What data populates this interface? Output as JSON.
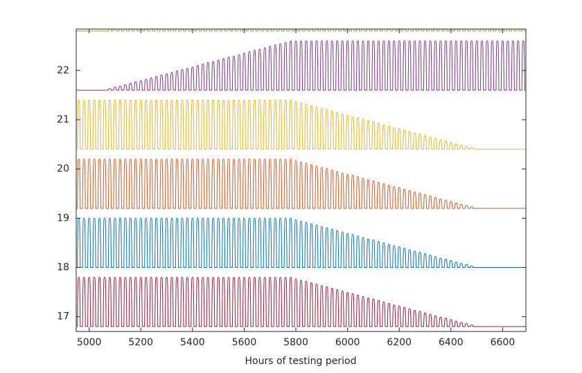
{
  "chart_data": {
    "type": "pulse",
    "xlabel": "Hours of testing period",
    "x": [
      4960,
      4980,
      5000,
      5020,
      5040,
      5060,
      5080,
      5100,
      5120,
      5140,
      5160,
      5180,
      5200,
      5220,
      5240,
      5260,
      5280,
      5300,
      5320,
      5340,
      5360,
      5380,
      5400,
      5420,
      5440,
      5460,
      5480,
      5500,
      5520,
      5540,
      5560,
      5580,
      5600,
      5620,
      5640,
      5660,
      5680,
      5700,
      5720,
      5740,
      5760,
      5780,
      5800,
      5820,
      5840,
      5860,
      5880,
      5900,
      5920,
      5940,
      5960,
      5980,
      6000,
      6020,
      6040,
      6060,
      6080,
      6100,
      6120,
      6140,
      6160,
      6180,
      6200,
      6220,
      6240,
      6260,
      6280,
      6300,
      6320,
      6340,
      6360,
      6380,
      6400,
      6420,
      6440,
      6460,
      6480,
      6500,
      6520,
      6540,
      6560,
      6580,
      6600,
      6620,
      6640,
      6660,
      6680
    ],
    "xlim": [
      4950,
      6690
    ],
    "xticks": [
      5000,
      5200,
      5400,
      5600,
      5800,
      6000,
      6200,
      6400,
      6600
    ],
    "ylim": [
      16.7,
      22.84
    ],
    "yticks": [
      17,
      18,
      19,
      20,
      21,
      22
    ],
    "series": [
      {
        "color": "#a2142f",
        "base": 16.8,
        "values": [
          17.8,
          17.8,
          17.8,
          17.8,
          17.8,
          17.8,
          17.8,
          17.8,
          17.8,
          17.8,
          17.8,
          17.8,
          17.8,
          17.8,
          17.8,
          17.8,
          17.8,
          17.8,
          17.8,
          17.8,
          17.8,
          17.8,
          17.8,
          17.8,
          17.8,
          17.8,
          17.8,
          17.8,
          17.8,
          17.8,
          17.8,
          17.8,
          17.8,
          17.8,
          17.8,
          17.8,
          17.8,
          17.8,
          17.8,
          17.8,
          17.8,
          17.8,
          17.77,
          17.74,
          17.72,
          17.69,
          17.66,
          17.63,
          17.61,
          17.58,
          17.55,
          17.52,
          17.49,
          17.47,
          17.44,
          17.41,
          17.38,
          17.36,
          17.33,
          17.3,
          17.27,
          17.24,
          17.22,
          17.19,
          17.16,
          17.13,
          17.11,
          17.08,
          17.05,
          17.02,
          16.99,
          16.97,
          16.94,
          16.91,
          16.88,
          16.86,
          16.83,
          16.8,
          16.8,
          16.8,
          16.8,
          16.8,
          16.8,
          16.8,
          16.8,
          16.8,
          16.8
        ]
      },
      {
        "color": "#0072bd",
        "base": 18,
        "values": [
          19,
          19,
          19,
          19,
          19,
          19,
          19,
          19,
          19,
          19,
          19,
          19,
          19,
          19,
          19,
          19,
          19,
          19,
          19,
          19,
          19,
          19,
          19,
          19,
          19,
          19,
          19,
          19,
          19,
          19,
          19,
          19,
          19,
          19,
          19,
          19,
          19,
          19,
          19,
          19,
          19,
          19,
          18.97,
          18.94,
          18.92,
          18.89,
          18.86,
          18.83,
          18.81,
          18.78,
          18.75,
          18.72,
          18.69,
          18.67,
          18.64,
          18.61,
          18.58,
          18.56,
          18.53,
          18.5,
          18.47,
          18.44,
          18.42,
          18.39,
          18.36,
          18.33,
          18.31,
          18.28,
          18.25,
          18.22,
          18.19,
          18.17,
          18.14,
          18.11,
          18.08,
          18.06,
          18.03,
          18,
          18,
          18,
          18,
          18,
          18,
          18,
          18,
          18,
          18
        ]
      },
      {
        "color": "#d95319",
        "base": 19.2,
        "values": [
          20.2,
          20.2,
          20.2,
          20.2,
          20.2,
          20.2,
          20.2,
          20.2,
          20.2,
          20.2,
          20.2,
          20.2,
          20.2,
          20.2,
          20.2,
          20.2,
          20.2,
          20.2,
          20.2,
          20.2,
          20.2,
          20.2,
          20.2,
          20.2,
          20.2,
          20.2,
          20.2,
          20.2,
          20.2,
          20.2,
          20.2,
          20.2,
          20.2,
          20.2,
          20.2,
          20.2,
          20.2,
          20.2,
          20.2,
          20.2,
          20.2,
          20.2,
          20.17,
          20.14,
          20.12,
          20.09,
          20.06,
          20.03,
          20.01,
          19.98,
          19.95,
          19.92,
          19.89,
          19.87,
          19.84,
          19.81,
          19.78,
          19.76,
          19.73,
          19.7,
          19.67,
          19.64,
          19.62,
          19.59,
          19.56,
          19.53,
          19.51,
          19.48,
          19.45,
          19.42,
          19.39,
          19.37,
          19.34,
          19.31,
          19.28,
          19.26,
          19.23,
          19.2,
          19.2,
          19.2,
          19.2,
          19.2,
          19.2,
          19.2,
          19.2,
          19.2,
          19.2
        ]
      },
      {
        "color": "#edb120",
        "base": 20.4,
        "values": [
          21.4,
          21.4,
          21.4,
          21.4,
          21.4,
          21.4,
          21.4,
          21.4,
          21.4,
          21.4,
          21.4,
          21.4,
          21.4,
          21.4,
          21.4,
          21.4,
          21.4,
          21.4,
          21.4,
          21.4,
          21.4,
          21.4,
          21.4,
          21.4,
          21.4,
          21.4,
          21.4,
          21.4,
          21.4,
          21.4,
          21.4,
          21.4,
          21.4,
          21.4,
          21.4,
          21.4,
          21.4,
          21.4,
          21.4,
          21.4,
          21.4,
          21.4,
          21.37,
          21.34,
          21.32,
          21.29,
          21.26,
          21.23,
          21.21,
          21.18,
          21.15,
          21.12,
          21.09,
          21.07,
          21.04,
          21.01,
          20.98,
          20.96,
          20.93,
          20.9,
          20.87,
          20.84,
          20.82,
          20.79,
          20.76,
          20.73,
          20.71,
          20.68,
          20.65,
          20.62,
          20.59,
          20.57,
          20.54,
          20.51,
          20.48,
          20.46,
          20.43,
          20.4,
          20.4,
          20.4,
          20.4,
          20.4,
          20.4,
          20.4,
          20.4,
          20.4,
          20.4
        ]
      },
      {
        "color": "#7e2f8e",
        "base": 21.6,
        "values": [
          21.6,
          21.6,
          21.6,
          21.6,
          21.6,
          21.6,
          21.63,
          21.66,
          21.68,
          21.71,
          21.74,
          21.77,
          21.79,
          21.82,
          21.85,
          21.88,
          21.91,
          21.93,
          21.96,
          21.99,
          22.02,
          22.04,
          22.07,
          22.1,
          22.13,
          22.16,
          22.18,
          22.21,
          22.24,
          22.27,
          22.29,
          22.32,
          22.35,
          22.38,
          22.41,
          22.43,
          22.46,
          22.49,
          22.52,
          22.54,
          22.57,
          22.6,
          22.6,
          22.6,
          22.6,
          22.6,
          22.6,
          22.6,
          22.6,
          22.6,
          22.6,
          22.6,
          22.6,
          22.6,
          22.6,
          22.6,
          22.6,
          22.6,
          22.6,
          22.6,
          22.6,
          22.6,
          22.6,
          22.6,
          22.6,
          22.6,
          22.6,
          22.6,
          22.6,
          22.6,
          22.6,
          22.6,
          22.6,
          22.6,
          22.6,
          22.6,
          22.6,
          22.6,
          22.6,
          22.6,
          22.6,
          22.6,
          22.6,
          22.6,
          22.6,
          22.6,
          22.6
        ]
      },
      {
        "color": "#77ac30",
        "base": 22.8,
        "values": [
          22.8,
          22.8,
          22.8,
          22.8,
          22.8,
          22.8,
          22.85,
          22.85,
          22.85,
          22.85,
          22.85,
          22.85,
          22.85,
          22.85,
          22.85,
          22.85,
          22.85,
          22.85,
          22.85,
          22.85,
          22.85,
          22.85,
          22.85,
          22.85,
          22.85,
          22.85,
          22.85,
          22.85,
          22.85,
          22.85,
          22.85,
          22.85,
          22.85,
          22.85,
          22.85,
          22.85,
          22.85,
          22.85,
          22.85,
          22.85,
          22.85,
          22.85,
          22.85,
          22.85,
          22.85,
          22.85,
          22.85,
          22.85,
          22.85,
          22.85,
          22.85,
          22.85,
          22.85,
          22.85,
          22.85,
          22.85,
          22.85,
          22.85,
          22.85,
          22.85,
          22.85,
          22.85,
          22.85,
          22.85,
          22.85,
          22.85,
          22.85,
          22.85,
          22.85,
          22.85,
          22.85,
          22.85,
          22.85,
          22.85,
          22.85,
          22.85,
          22.85,
          22.85,
          22.85,
          22.85,
          22.85,
          22.85,
          22.85,
          22.85,
          22.85,
          22.85,
          22.85
        ]
      }
    ]
  }
}
